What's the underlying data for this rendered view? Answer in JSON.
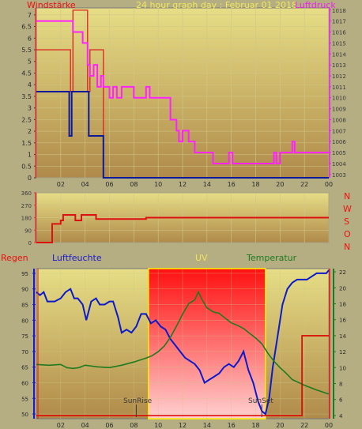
{
  "header": {
    "title": "24 hour graph day : Februar 01 2018",
    "left_label": "Windstärke",
    "right_label": "Luftdruck"
  },
  "bottom_labels": {
    "regen": "Regen",
    "luftfeuchte": "Luftfeuchte",
    "uv": "UV",
    "temperatur": "Temperatur",
    "sunrise": "SunRise",
    "sunset": "SunSet"
  },
  "direction_letters": [
    "N",
    "W",
    "S",
    "O",
    "N"
  ],
  "colors": {
    "background": "#b5ae83",
    "wind_speed": "#dd2222",
    "wind_gust": "#0a1a9a",
    "pressure": "#ff22ff",
    "direction": "#dd1111",
    "humidity": "#0a1acc",
    "temperature": "#1f7a1f",
    "rain": "#dd0000",
    "uv_fill": "#ff2020"
  },
  "chart_data": [
    {
      "type": "line",
      "title": "24 hour graph day : Februar 01 2018",
      "x_ticks": [
        "02",
        "04",
        "06",
        "08",
        "10",
        "12",
        "14",
        "16",
        "18",
        "20",
        "22",
        "00"
      ],
      "x_range": [
        0,
        24
      ],
      "y_left": {
        "label": "Windstärke",
        "ticks": [
          "0",
          "0.5",
          "1",
          "1.5",
          "2",
          "2.5",
          "3",
          "3.5",
          "4",
          "4.5",
          "5",
          "5.5",
          "6",
          "6.5",
          "7"
        ],
        "range": [
          0,
          7.3
        ]
      },
      "y_right": {
        "label": "Luftdruck",
        "ticks": [
          "1003",
          "1004",
          "1005",
          "1006",
          "1007",
          "1008",
          "1009",
          "1010",
          "1011",
          "1012",
          "1013",
          "1014",
          "1015",
          "1016",
          "1017",
          "1018"
        ],
        "range": [
          1002.7,
          1018.2
        ]
      },
      "series": [
        {
          "key": "wind_speed",
          "axis": "left",
          "step": true,
          "x": [
            0,
            2.7,
            2.8,
            3.0,
            3.8,
            4.2,
            4.4,
            5.3,
            5.5,
            24
          ],
          "y": [
            5.5,
            5.5,
            3.7,
            7.2,
            7.2,
            3.7,
            5.5,
            5.5,
            0,
            0
          ]
        },
        {
          "key": "wind_gust",
          "axis": "left",
          "step": true,
          "x": [
            0,
            2.5,
            2.7,
            2.9,
            4.0,
            4.3,
            5.2,
            5.5,
            24
          ],
          "y": [
            3.7,
            3.7,
            1.8,
            3.7,
            3.7,
            1.8,
            1.8,
            0,
            0
          ]
        },
        {
          "key": "pressure",
          "axis": "right",
          "step": true,
          "x": [
            0,
            2.5,
            3.0,
            3.8,
            4.2,
            4.4,
            4.7,
            5.0,
            5.3,
            5.5,
            6.0,
            6.3,
            6.6,
            7.0,
            7.5,
            8.0,
            9.0,
            9.3,
            10.3,
            11.0,
            11.5,
            11.7,
            12.0,
            12.5,
            13.0,
            14.5,
            15.5,
            15.8,
            16.1,
            16.4,
            19.3,
            19.5,
            19.7,
            20.0,
            20.8,
            21.0,
            21.2,
            24
          ],
          "y": [
            1017,
            1017,
            1016,
            1015,
            1013,
            1012,
            1013,
            1011,
            1012,
            1011,
            1010,
            1011,
            1010,
            1011,
            1011,
            1010,
            1011,
            1010,
            1010,
            1008,
            1007,
            1006,
            1007,
            1006,
            1005,
            1004,
            1004,
            1005,
            1004,
            1004,
            1004,
            1005,
            1004,
            1005,
            1005,
            1006,
            1005,
            1005
          ]
        }
      ]
    },
    {
      "type": "line",
      "title": "",
      "x_range": [
        0,
        24
      ],
      "y": {
        "ticks": [
          "0",
          "90",
          "180",
          "270",
          "360"
        ],
        "range": [
          0,
          360
        ]
      },
      "series": [
        {
          "key": "direction",
          "step": true,
          "x": [
            0,
            1.1,
            1.3,
            2.0,
            2.2,
            2.8,
            3.2,
            3.5,
            3.7,
            4.6,
            4.9,
            8.8,
            9.0,
            24
          ],
          "y": [
            0,
            0,
            135,
            160,
            200,
            200,
            160,
            160,
            200,
            200,
            170,
            170,
            180,
            180
          ]
        }
      ]
    },
    {
      "type": "line",
      "title": "",
      "x_ticks": [
        "02",
        "04",
        "06",
        "08",
        "10",
        "12",
        "14",
        "16",
        "18",
        "20",
        "22",
        "00"
      ],
      "x_range": [
        0,
        24
      ],
      "y_left": {
        "label": "Luftfeuchte",
        "ticks": [
          "50",
          "55",
          "60",
          "65",
          "70",
          "75",
          "80",
          "85",
          "90",
          "95"
        ],
        "range": [
          48.5,
          96.5
        ]
      },
      "y_right": {
        "label": "Temperatur",
        "ticks": [
          "4",
          "6",
          "8",
          "10",
          "12",
          "14",
          "16",
          "18",
          "20",
          "22"
        ],
        "range": [
          3.6,
          22.4
        ]
      },
      "uv_window": {
        "sunrise": 9.2,
        "sunset": 18.8
      },
      "series": [
        {
          "key": "humidity",
          "axis": "left",
          "x": [
            0,
            0.3,
            0.6,
            0.9,
            1.2,
            1.5,
            2.0,
            2.4,
            2.8,
            3.1,
            3.4,
            3.8,
            4.1,
            4.5,
            4.9,
            5.2,
            5.6,
            6.0,
            6.3,
            6.7,
            7.0,
            7.4,
            7.8,
            8.2,
            8.6,
            9.0,
            9.4,
            9.8,
            10.2,
            10.6,
            11.0,
            11.4,
            11.8,
            12.2,
            12.6,
            13.0,
            13.4,
            13.8,
            14.2,
            14.6,
            15.0,
            15.4,
            15.8,
            16.2,
            16.6,
            17.0,
            17.4,
            17.8,
            18.2,
            18.5,
            18.8,
            19.1,
            19.4,
            19.8,
            20.2,
            20.6,
            21.0,
            21.4,
            21.8,
            22.2,
            22.6,
            23.0,
            23.4,
            23.8,
            24.0
          ],
          "y": [
            89,
            88,
            89,
            86,
            86,
            86,
            87,
            89,
            90,
            87,
            87,
            85,
            80,
            86,
            87,
            85,
            85,
            86,
            86,
            81,
            76,
            77,
            76,
            78,
            82,
            82,
            79,
            80,
            78,
            77,
            74,
            72,
            70,
            68,
            67,
            66,
            64,
            60,
            61,
            62,
            63,
            65,
            66,
            65,
            67,
            70,
            64,
            60,
            54,
            51,
            50,
            55,
            65,
            75,
            85,
            90,
            92,
            93,
            93,
            93,
            94,
            95,
            95,
            95,
            96
          ]
        },
        {
          "key": "temperature",
          "axis": "right",
          "x": [
            0,
            1.0,
            2.0,
            2.5,
            3.0,
            3.5,
            4.0,
            5.0,
            6.0,
            7.0,
            8.0,
            9.0,
            9.5,
            10.0,
            10.5,
            11.0,
            11.5,
            12.0,
            12.5,
            13.0,
            13.3,
            13.6,
            14.0,
            14.5,
            15.0,
            15.5,
            16.0,
            16.5,
            17.0,
            17.5,
            18.0,
            18.5,
            19.0,
            19.5,
            20.0,
            20.5,
            21.0,
            22.0,
            23.0,
            24.0
          ],
          "y": [
            10.4,
            10.3,
            10.4,
            10.0,
            9.9,
            10.0,
            10.3,
            10.1,
            10.0,
            10.3,
            10.7,
            11.2,
            11.5,
            12.0,
            12.7,
            13.8,
            15.2,
            16.7,
            18.0,
            18.5,
            19.5,
            18.5,
            17.5,
            17.0,
            16.8,
            16.2,
            15.6,
            15.3,
            14.9,
            14.3,
            13.7,
            13.0,
            11.8,
            10.8,
            10.0,
            9.3,
            8.5,
            7.8,
            7.2,
            6.7
          ]
        },
        {
          "key": "rain",
          "axis": "right",
          "step": true,
          "x": [
            0,
            21.8,
            21.8,
            24.0
          ],
          "y": [
            4.0,
            4.0,
            14.0,
            14.0
          ]
        }
      ]
    }
  ]
}
